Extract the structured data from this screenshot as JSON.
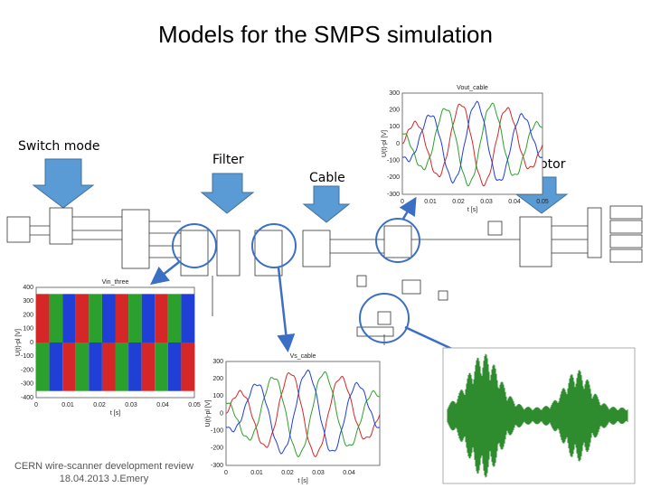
{
  "header": {
    "title": "Models for the SMPS simulation"
  },
  "labels": {
    "switch_mode": "Switch mode",
    "filter": "Filter",
    "cable": "Cable",
    "motor": "Motor"
  },
  "footer": {
    "line1": "CERN wire-scanner development review",
    "line2": "18.04.2013 J.Emery"
  },
  "plots": [
    {
      "title": "Vout_cable",
      "ylabel": "U(t)-pl [V]",
      "xlabel": "t [s]",
      "yticks": [
        300,
        200,
        100,
        0,
        -100,
        -200,
        -300
      ],
      "xticks": [
        0,
        0.01,
        0.02,
        0.03,
        0.04,
        0.05
      ]
    },
    {
      "title": "Vin_three",
      "ylabel": "U(t)-pl [V]",
      "xlabel": "t [s]",
      "yticks": [
        400,
        300,
        200,
        100,
        0,
        -100,
        -200,
        -300,
        -400
      ],
      "xticks": [
        0,
        0.01,
        0.02,
        0.03,
        0.04,
        0.05
      ]
    },
    {
      "title": "Vs_cable",
      "ylabel": "U(t)-pl [V]",
      "xlabel": "t [s]",
      "yticks": [
        300,
        200,
        100,
        0,
        -100,
        -200,
        -300
      ],
      "xticks": [
        0,
        0.01,
        0.02,
        0.03,
        0.04
      ]
    }
  ]
}
